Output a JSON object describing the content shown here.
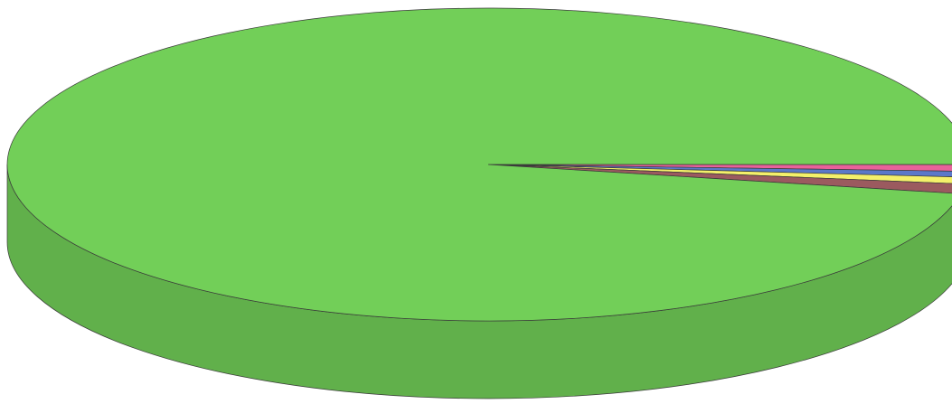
{
  "chart_data": {
    "type": "pie",
    "style": "3d",
    "start_angle_deg": 0,
    "direction": "clockwise",
    "slices": [
      {
        "value": 0.7,
        "color": "#e8629a"
      },
      {
        "value": 0.6,
        "color": "#5b78c9"
      },
      {
        "value": 0.7,
        "color": "#f4f06a"
      },
      {
        "value": 1.0,
        "color": "#9b5a5f"
      },
      {
        "value": 97.0,
        "color": "#72cf58"
      }
    ]
  }
}
